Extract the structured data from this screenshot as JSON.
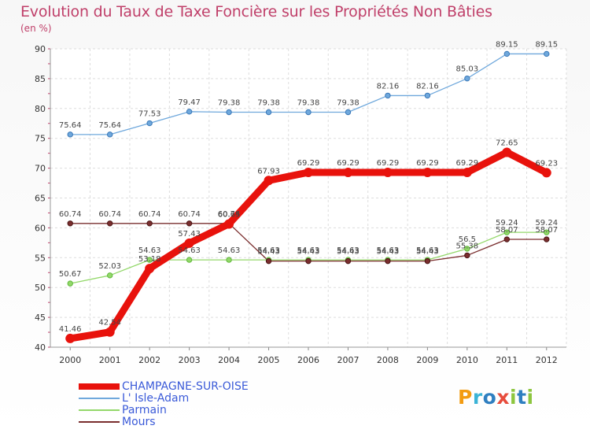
{
  "title": "Evolution du Taux de Taxe Foncière sur les Propriétés Non Bâties",
  "unit_label": "(en %)",
  "logo": {
    "text": "Proxiti"
  },
  "chart_data": {
    "type": "line",
    "title": "Evolution du Taux de Taxe Foncière sur les Propriétés Non Bâties",
    "ylabel": "(en %)",
    "xlabel": "",
    "ylim": [
      40,
      90
    ],
    "y_ticks": [
      "40",
      "45",
      "50",
      "55",
      "60",
      "65",
      "70",
      "75",
      "80",
      "85",
      "90"
    ],
    "categories": [
      "2000",
      "2001",
      "2002",
      "2003",
      "2004",
      "2005",
      "2006",
      "2007",
      "2008",
      "2009",
      "2010",
      "2011",
      "2012"
    ],
    "grid": true,
    "legend_position": "bottom-left",
    "series": [
      {
        "name": "CHAMPAGNE-SUR-OISE",
        "color": "#e8120c",
        "values": [
          41.46,
          42.54,
          53.18,
          57.43,
          60.65,
          67.93,
          69.29,
          69.29,
          69.29,
          69.29,
          69.29,
          72.65,
          69.23
        ],
        "labels": [
          "41.46",
          "42.54",
          "53.18",
          "57.43",
          "60.65",
          "67.93",
          "69.29",
          "69.29",
          "69.29",
          "69.29",
          "69.29",
          "72.65",
          "69.23"
        ]
      },
      {
        "name": "L' Isle-Adam",
        "color": "#6fa8dc",
        "values": [
          75.64,
          75.64,
          77.53,
          79.47,
          79.38,
          79.38,
          79.38,
          79.38,
          82.16,
          82.16,
          85.03,
          89.15,
          89.15
        ],
        "labels": [
          "75.64",
          "75.64",
          "77.53",
          "79.47",
          "79.38",
          "79.38",
          "79.38",
          "79.38",
          "82.16",
          "82.16",
          "85.03",
          "89.15",
          "89.15"
        ]
      },
      {
        "name": "Parmain",
        "color": "#93d86a",
        "values": [
          50.67,
          52.03,
          54.63,
          54.63,
          54.63,
          54.63,
          54.63,
          54.63,
          54.63,
          54.63,
          56.5,
          59.24,
          59.24
        ],
        "labels": [
          "50.67",
          "52.03",
          "54.63",
          "54.63",
          "54.63",
          "54.63",
          "54.63",
          "54.63",
          "54.63",
          "54.63",
          "56.5",
          "59.24",
          "59.24"
        ]
      },
      {
        "name": "Mours",
        "color": "#7a2e2e",
        "values": [
          60.74,
          60.74,
          60.74,
          60.74,
          60.74,
          54.43,
          54.43,
          54.43,
          54.43,
          54.43,
          55.38,
          58.07,
          58.07
        ],
        "labels": [
          "60.74",
          "60.74",
          "60.74",
          "60.74",
          "60.74",
          "54.43",
          "54.43",
          "54.43",
          "54.43",
          "54.43",
          "55.38",
          "58.07",
          "58.07"
        ]
      }
    ]
  }
}
